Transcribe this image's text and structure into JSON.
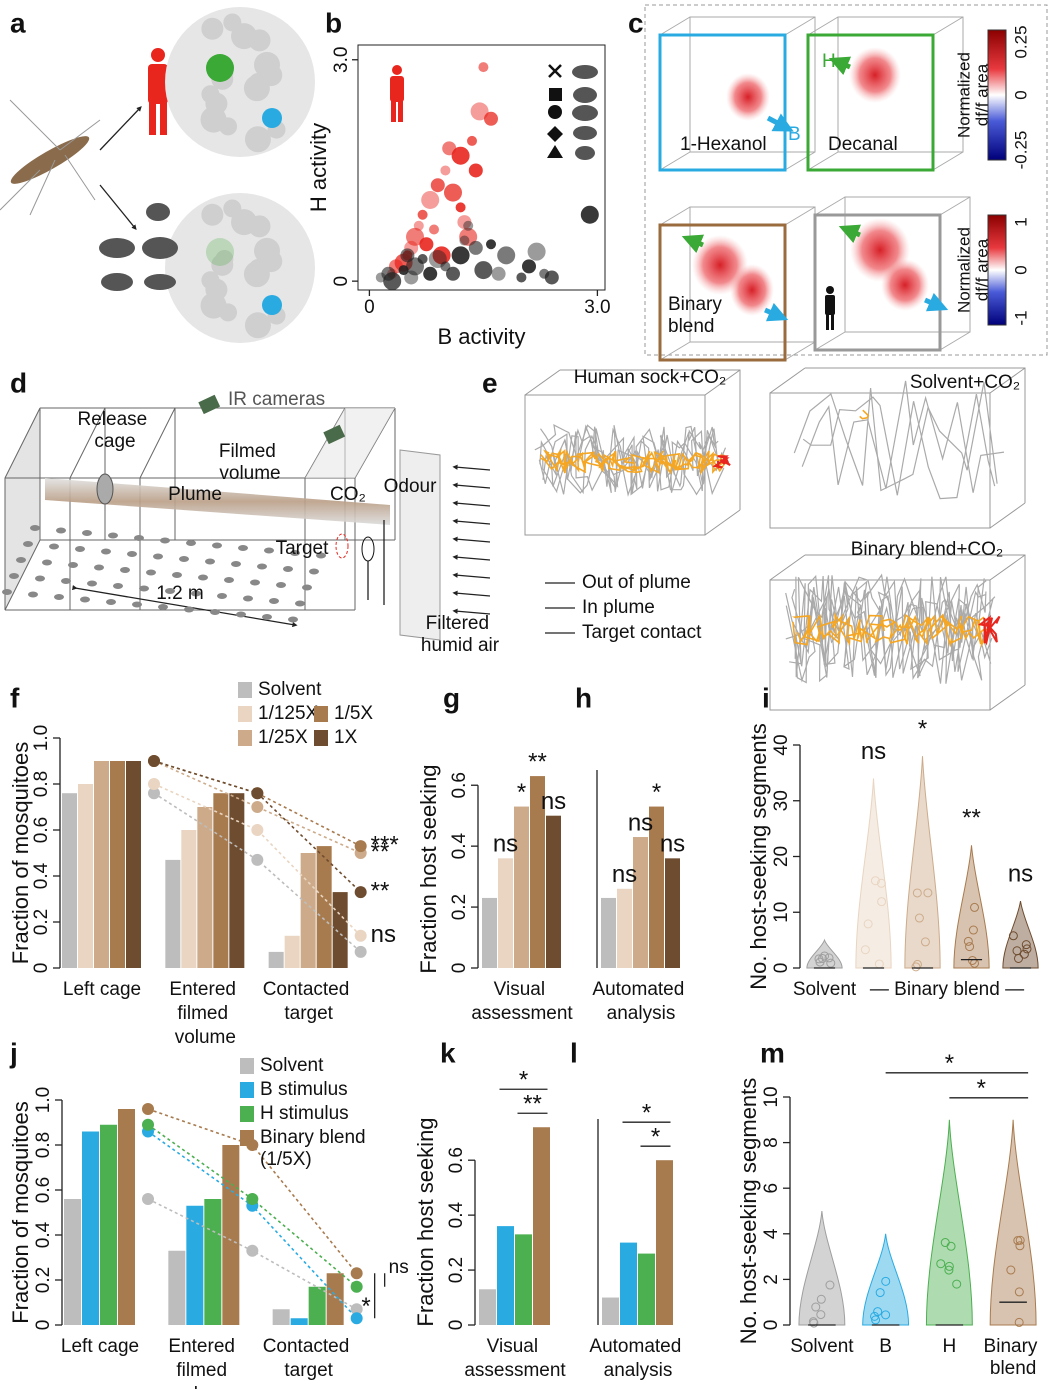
{
  "panel_labels": [
    "a",
    "b",
    "c",
    "d",
    "e",
    "f",
    "g",
    "h",
    "i",
    "j",
    "k",
    "l",
    "m"
  ],
  "panel_c": {
    "labels": [
      "1-Hexanol",
      "Decanal",
      "Binary blend"
    ],
    "arrows": [
      "B",
      "H"
    ],
    "colorbars": [
      {
        "title": [
          "Normalized",
          "df/f area"
        ],
        "ticks": [
          "0.25",
          "0",
          "-0.25"
        ]
      },
      {
        "title": [
          "Normalized",
          "df/f area"
        ],
        "ticks": [
          "1",
          "0",
          "-1"
        ]
      }
    ]
  },
  "panel_d": {
    "labels": [
      "IR cameras",
      "Release cage",
      "Filmed volume",
      "Plume",
      "CO₂",
      "Odour",
      "Target",
      "1.2 m",
      "Filtered humid air"
    ]
  },
  "panel_e": {
    "titles": [
      "Human sock+CO₂",
      "Solvent+CO₂",
      "Binary blend+CO₂"
    ],
    "legend": [
      {
        "name": "Out of plume",
        "color": "#aaaaaa"
      },
      {
        "name": "In plume",
        "color": "#f5a623"
      },
      {
        "name": "Target contact",
        "color": "#e8261e"
      }
    ]
  },
  "chart_data": [
    {
      "type": "scatter",
      "xlabel": "B activity",
      "ylabel": "H activity",
      "xlim": [
        -0.15,
        3.1
      ],
      "ylim": [
        -0.12,
        3.2
      ],
      "xticks": [
        0,
        {
          "value": 3,
          "label": "3.0"
        }
      ],
      "yticks": [
        0,
        {
          "value": 3,
          "label": "3.0"
        }
      ],
      "series": [
        {
          "color": "#e8261e",
          "x": [
            0.3,
            0.35,
            0.45,
            0.5,
            0.55,
            0.6,
            0.7,
            0.75,
            0.8,
            0.85,
            0.9,
            0.95,
            1.0,
            1.05,
            1.1,
            1.2,
            1.25,
            1.3,
            1.35,
            1.4,
            1.45,
            1.5,
            1.6,
            1.2,
            0.65
          ],
          "y": [
            0.1,
            0.2,
            0.25,
            0.35,
            0.45,
            0.6,
            0.9,
            0.5,
            1.1,
            0.7,
            1.3,
            0.35,
            1.5,
            1.8,
            1.2,
            1.0,
            0.8,
            0.6,
            1.9,
            1.5,
            2.3,
            2.9,
            2.2,
            1.7,
            0.75
          ]
        },
        {
          "color": "#222222",
          "x": [
            0.15,
            0.25,
            0.3,
            0.45,
            0.55,
            0.6,
            0.7,
            0.8,
            0.9,
            1.0,
            1.1,
            1.2,
            1.3,
            1.4,
            1.5,
            1.6,
            1.7,
            1.8,
            2.0,
            2.1,
            2.2,
            2.3,
            2.4,
            2.9,
            1.25,
            0.5
          ],
          "y": [
            0.05,
            0.1,
            0.0,
            0.15,
            0.05,
            0.2,
            0.3,
            0.1,
            0.3,
            0.2,
            0.1,
            0.35,
            0.75,
            0.45,
            0.15,
            0.5,
            0.1,
            0.35,
            0.05,
            0.2,
            0.4,
            0.1,
            0.05,
            0.9,
            0.55,
            0.35
          ]
        }
      ]
    },
    {
      "type": "bar",
      "ylabel": "Fraction of mosquitoes",
      "ylim": [
        0,
        1
      ],
      "yticks": [
        0,
        0.2,
        0.4,
        0.6,
        0.8,
        {
          "value": 1,
          "label": "1.0"
        }
      ],
      "categories": [
        "Left cage",
        "Entered filmed volume",
        "Contacted target"
      ],
      "dots": true,
      "series": [
        {
          "name": "Solvent",
          "color": "#bdbdbd",
          "values": [
            0.76,
            0.47,
            0.07
          ]
        },
        {
          "name": "1/125X",
          "color": "#e9d5c1",
          "values": [
            0.8,
            0.6,
            0.14
          ]
        },
        {
          "name": "1/25X",
          "color": "#cdab8a",
          "values": [
            0.9,
            0.7,
            0.5
          ]
        },
        {
          "name": "1/5X",
          "color": "#a87b4f",
          "values": [
            0.9,
            0.76,
            0.53
          ]
        },
        {
          "name": "1X",
          "color": "#6e4c2f",
          "values": [
            0.9,
            0.76,
            0.33
          ]
        }
      ],
      "annotations": [
        {
          "text": "***",
          "series": [
            3
          ]
        },
        {
          "text": "**",
          "series": [
            2
          ]
        },
        {
          "text": "**",
          "series": [
            4
          ]
        },
        {
          "text": "ns",
          "series": [
            1
          ]
        }
      ]
    },
    {
      "type": "bar",
      "ylabel": "Fraction host seeking",
      "ylim": [
        0,
        0.65
      ],
      "yticks": [
        0,
        0.2,
        0.4,
        0.6
      ],
      "categories": [
        "Visual assessment"
      ],
      "series": [
        {
          "color": "#bdbdbd",
          "values": [
            0.23
          ]
        },
        {
          "color": "#e9d5c1",
          "values": [
            0.36
          ]
        },
        {
          "color": "#cdab8a",
          "values": [
            0.53
          ]
        },
        {
          "color": "#a87b4f",
          "values": [
            0.63
          ]
        },
        {
          "color": "#6e4c2f",
          "values": [
            0.5
          ]
        }
      ],
      "annotations": [
        {
          "text": "ns",
          "series": [
            1
          ]
        },
        {
          "text": "*",
          "series": [
            2
          ]
        },
        {
          "text": "**",
          "series": [
            3
          ]
        },
        {
          "text": "ns",
          "series": [
            4
          ]
        }
      ]
    },
    {
      "type": "bar",
      "ylim": [
        0,
        0.65
      ],
      "categories": [
        "Automated analysis"
      ],
      "series": [
        {
          "color": "#bdbdbd",
          "values": [
            0.23
          ]
        },
        {
          "color": "#e9d5c1",
          "values": [
            0.26
          ]
        },
        {
          "color": "#cdab8a",
          "values": [
            0.43
          ]
        },
        {
          "color": "#a87b4f",
          "values": [
            0.53
          ]
        },
        {
          "color": "#6e4c2f",
          "values": [
            0.36
          ]
        }
      ],
      "annotations": [
        {
          "text": "ns",
          "series": [
            1
          ]
        },
        {
          "text": "ns",
          "series": [
            2
          ]
        },
        {
          "text": "*",
          "series": [
            3
          ]
        },
        {
          "text": "ns",
          "series": [
            4
          ]
        }
      ]
    },
    {
      "type": "violin",
      "ylabel": "No. host-seeking segments",
      "ylim": [
        0,
        40
      ],
      "yticks": [
        0,
        10,
        20,
        30,
        40
      ],
      "groups": [
        {
          "color": "#9e9e9e",
          "max": 5,
          "median": 0
        },
        {
          "color": "#e9d5c1",
          "max": 34,
          "median": 0
        },
        {
          "color": "#cdab8a",
          "max": 38,
          "median": 0
        },
        {
          "color": "#a87b4f",
          "max": 22,
          "median": 1.5
        },
        {
          "color": "#6e4c2f",
          "max": 12,
          "median": 0
        }
      ],
      "x_labels": [
        {
          "label": "Solvent",
          "groups": [
            0
          ]
        },
        {
          "label": "— Binary blend —",
          "groups": [
            1,
            2,
            3,
            4
          ]
        }
      ],
      "annotations": [
        {
          "text": "ns",
          "groups": [
            1
          ]
        },
        {
          "text": "*",
          "groups": [
            2
          ]
        },
        {
          "text": "**",
          "groups": [
            3
          ]
        },
        {
          "text": "ns",
          "groups": [
            4
          ]
        }
      ]
    },
    {
      "type": "bar",
      "ylabel": "Fraction of mosquitoes",
      "ylim": [
        0,
        1
      ],
      "yticks": [
        0,
        0.2,
        0.4,
        0.6,
        0.8,
        {
          "value": 1,
          "label": "1.0"
        }
      ],
      "categories": [
        "Left cage",
        "Entered filmed volume",
        "Contacted target"
      ],
      "dots": true,
      "series": [
        {
          "name": "Solvent",
          "color": "#bdbdbd",
          "values": [
            0.56,
            0.33,
            0.07
          ]
        },
        {
          "name": "B stimulus",
          "color": "#29abe2",
          "values": [
            0.86,
            0.53,
            0.03
          ]
        },
        {
          "name": "H stimulus",
          "color": "#4caf50",
          "values": [
            0.89,
            0.56,
            0.17
          ]
        },
        {
          "name": "Binary blend (1/5X)",
          "color": "#a87b4f",
          "values": [
            0.96,
            0.8,
            0.23
          ]
        }
      ],
      "annotations": [
        {
          "text": "*",
          "series": [
            1,
            3
          ]
        },
        {
          "text": "ns",
          "series": [
            2,
            3
          ]
        }
      ]
    },
    {
      "type": "bar",
      "ylabel": "Fraction host seeking",
      "ylim": [
        0,
        0.75
      ],
      "yticks": [
        0,
        0.2,
        0.4,
        0.6
      ],
      "categories": [
        "Visual assessment"
      ],
      "series": [
        {
          "color": "#bdbdbd",
          "values": [
            0.13
          ]
        },
        {
          "color": "#29abe2",
          "values": [
            0.36
          ]
        },
        {
          "color": "#4caf50",
          "values": [
            0.33
          ]
        },
        {
          "color": "#a87b4f",
          "values": [
            0.72
          ]
        }
      ],
      "annotations": [
        {
          "text": "*",
          "series": [
            1,
            3
          ]
        },
        {
          "text": "**",
          "series": [
            2,
            3
          ]
        }
      ]
    },
    {
      "type": "bar",
      "ylim": [
        0,
        0.75
      ],
      "categories": [
        "Automated analysis"
      ],
      "series": [
        {
          "color": "#bdbdbd",
          "values": [
            0.1
          ]
        },
        {
          "color": "#29abe2",
          "values": [
            0.3
          ]
        },
        {
          "color": "#4caf50",
          "values": [
            0.26
          ]
        },
        {
          "color": "#a87b4f",
          "values": [
            0.6
          ]
        }
      ],
      "annotations": [
        {
          "text": "*",
          "series": [
            1,
            3
          ]
        },
        {
          "text": "*",
          "series": [
            2,
            3
          ]
        }
      ]
    },
    {
      "type": "violin",
      "ylabel": "No. host-seeking segments",
      "ylim": [
        0,
        10
      ],
      "yticks": [
        0,
        2,
        4,
        6,
        8,
        10
      ],
      "groups": [
        {
          "color": "#9e9e9e",
          "max": 5,
          "median": 0
        },
        {
          "color": "#29abe2",
          "max": 4,
          "median": 0
        },
        {
          "color": "#4caf50",
          "max": 9,
          "median": 0
        },
        {
          "color": "#a87b4f",
          "max": 9,
          "median": 1
        }
      ],
      "x_labels": [
        {
          "label": "Solvent",
          "groups": [
            0
          ]
        },
        {
          "label": "B",
          "groups": [
            1
          ]
        },
        {
          "label": "H",
          "groups": [
            2
          ]
        },
        {
          "label": "Binary blend",
          "groups": [
            3
          ]
        }
      ],
      "annotations": [
        {
          "text": "*",
          "groups": [
            1,
            3
          ]
        },
        {
          "text": "*",
          "groups": [
            2,
            3
          ]
        }
      ]
    }
  ]
}
